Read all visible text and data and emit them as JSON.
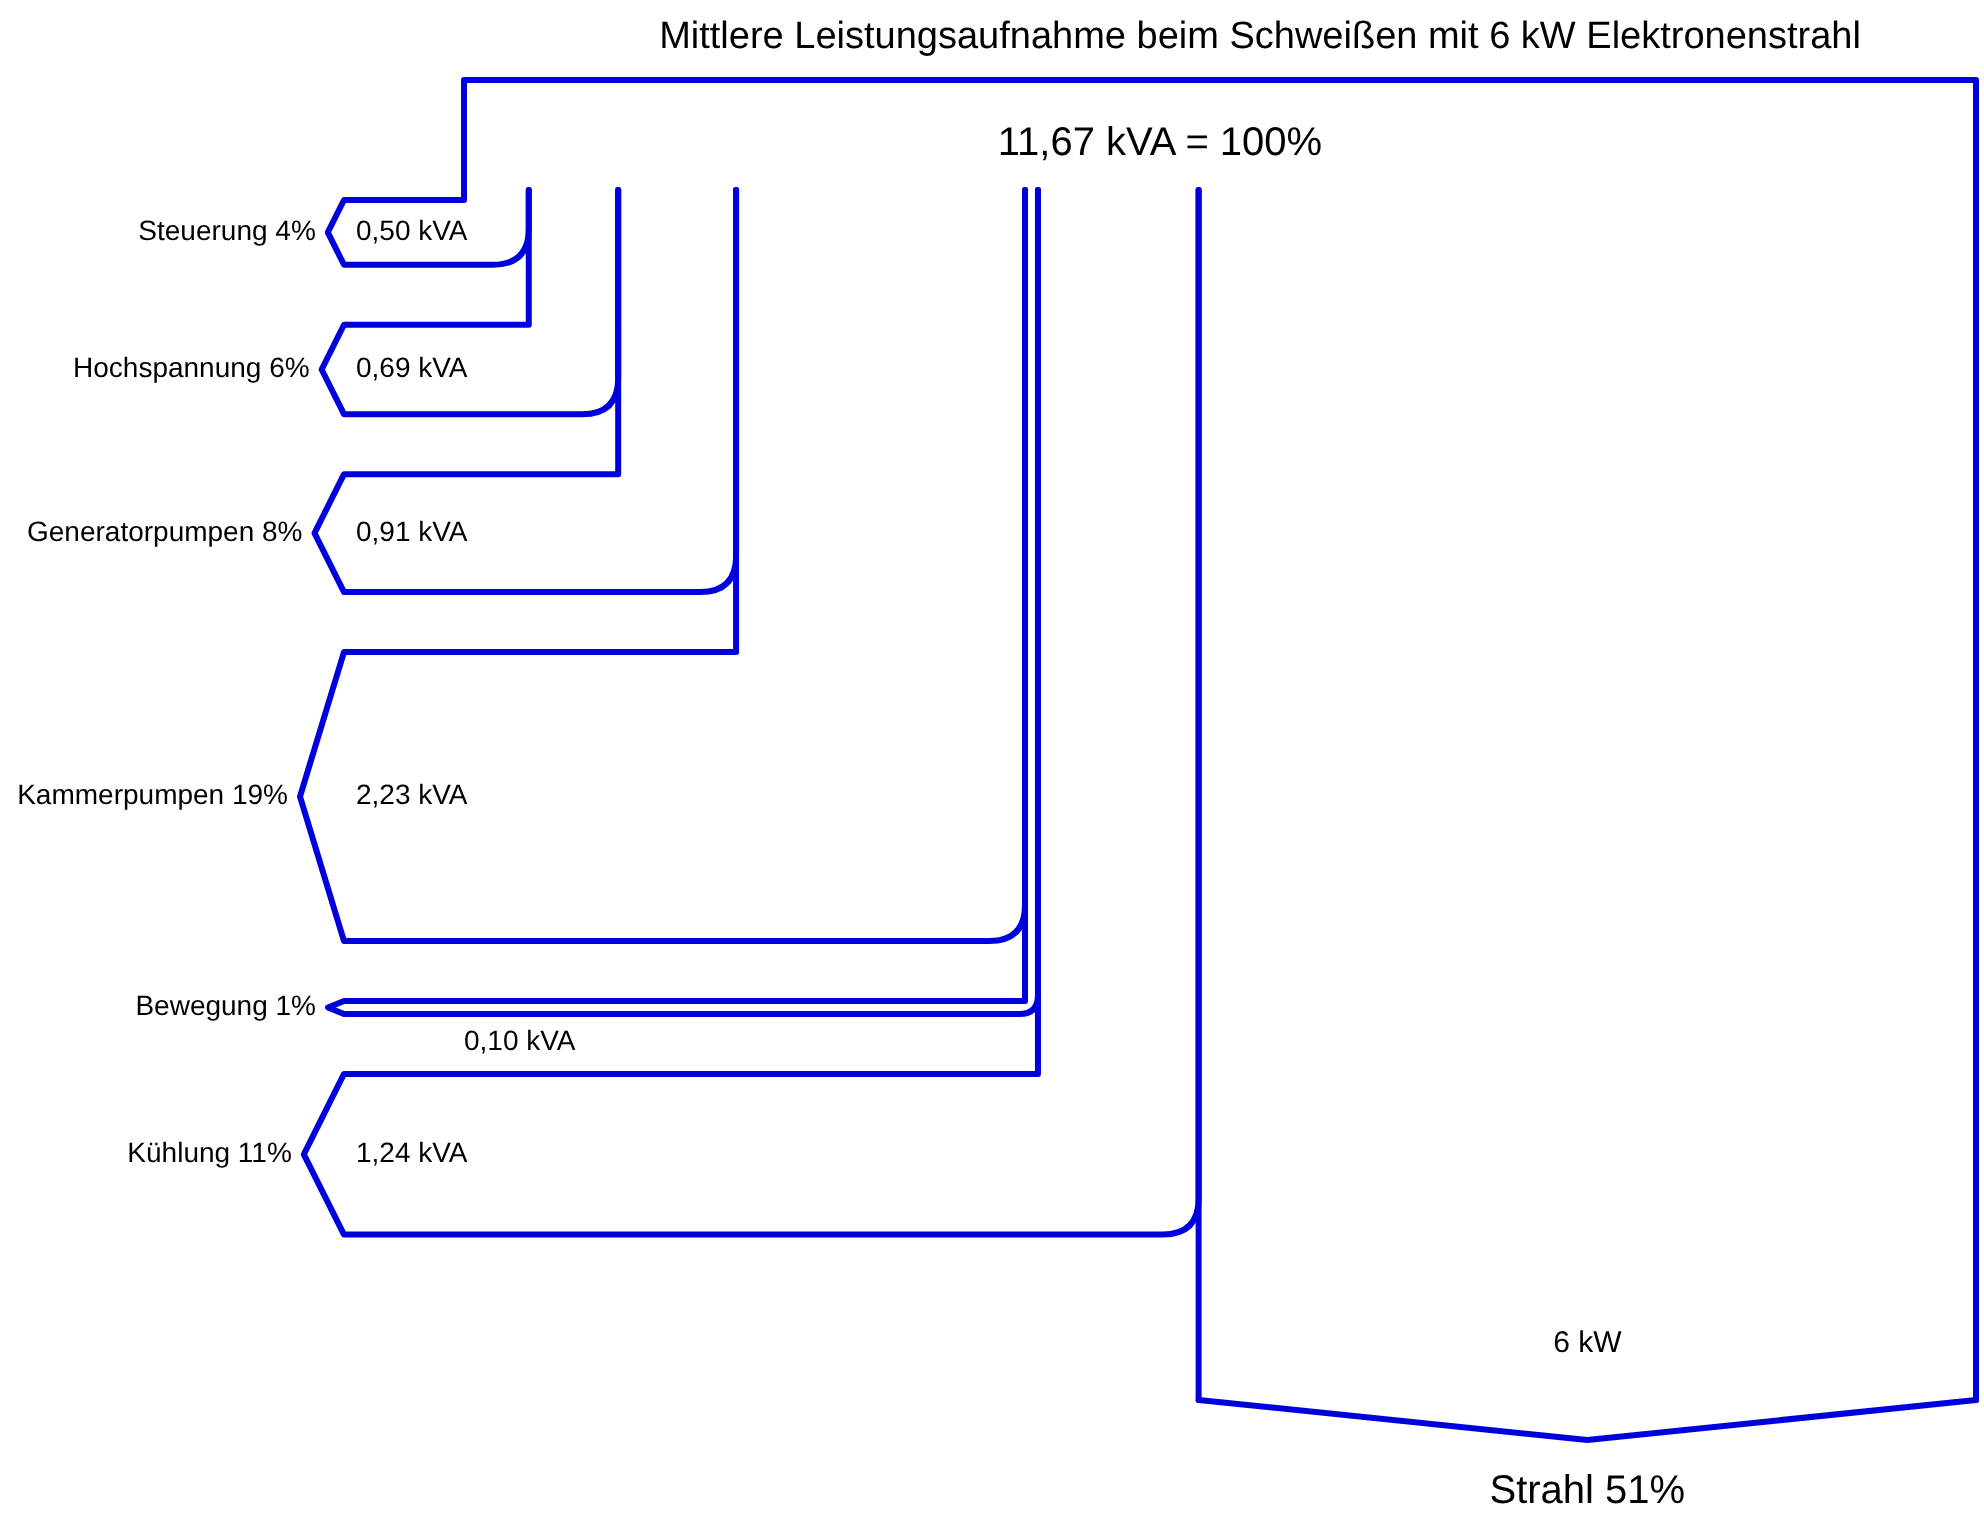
{
  "chart_data": {
    "type": "other",
    "title": "Mittlere Leistungsaufnahme beim Schweißen mit 6 kW Elektronenstrahl",
    "categories": [
      "Steuerung 4%",
      "Hochspannung 6%",
      "Generatorpumpen 8%",
      "Kammerpumpen 19%",
      "Bewegung 1%",
      "Kühlung 11%",
      "Strahl 51%"
    ],
    "values": [
      0.5,
      0.69,
      0.91,
      2.23,
      0.1,
      1.24,
      6
    ],
    "value_labels": [
      "0,50 kVA",
      "0,69 kVA",
      "0,91 kVA",
      "2,23 kVA",
      "0,10 kVA",
      "1,24 kVA",
      "6 kW"
    ],
    "color": "#0000dd",
    "annotations": [
      "11,67 kVA = 100%"
    ]
  }
}
